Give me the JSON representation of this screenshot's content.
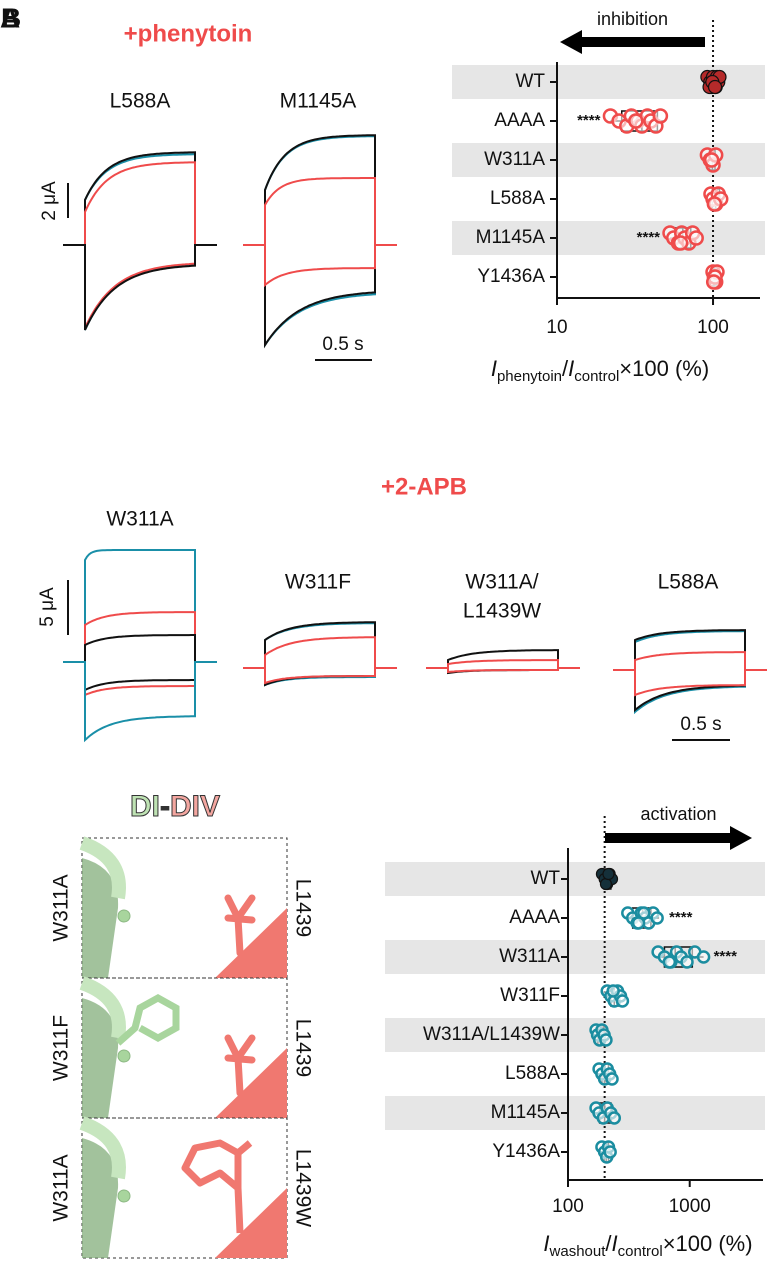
{
  "panel_labels": [
    "A",
    "B"
  ],
  "phenytoin_traces": {
    "title": "+phenytoin",
    "labels": [
      "L588A",
      "M1145A"
    ],
    "scale_current": "2 μA",
    "scale_time": "0.5 s"
  },
  "apb_traces": {
    "title": "+2-APB",
    "labels": [
      [
        "W311A"
      ],
      [
        "W311F"
      ],
      [
        "W311A/",
        "L1439W"
      ],
      [
        "L588A"
      ]
    ],
    "scale_current": "5 μA",
    "scale_time": "0.5 s"
  },
  "structures": {
    "title": [
      "DI",
      "-",
      "DIV"
    ],
    "rows": [
      {
        "left": "W311A",
        "right": "L1439"
      },
      {
        "left": "W311F",
        "right": "L1439"
      },
      {
        "left": "W311A",
        "right": "L1439W"
      }
    ]
  },
  "chart_data": [
    {
      "type": "box",
      "annotation": "inhibition",
      "log_x": true,
      "reference_line": 100,
      "categories": [
        "WT",
        "AAAA",
        "W311A",
        "L588A",
        "M1145A",
        "Y1436A"
      ],
      "point_colors": [
        "#b52a2a",
        "#ef4b4b",
        "#ef4b4b",
        "#ef4b4b",
        "#ef4b4b",
        "#ef4b4b"
      ],
      "points": [
        [
          92,
          96,
          98,
          100,
          102,
          104,
          106,
          108,
          95,
          110,
          99,
          103
        ],
        [
          22,
          25,
          28,
          30,
          33,
          35,
          38,
          40,
          43,
          46,
          32
        ],
        [
          92,
          96,
          100,
          104,
          98
        ],
        [
          97,
          100,
          104,
          108,
          112,
          102
        ],
        [
          53,
          56,
          60,
          63,
          66,
          70,
          74,
          78,
          62
        ],
        [
          100,
          102,
          104,
          106,
          103,
          101
        ]
      ],
      "boxes": [
        {
          "min": 92,
          "q1": 96,
          "median": 100,
          "q3": 106,
          "max": 110
        },
        {
          "min": 22,
          "q1": 26,
          "median": 35,
          "q3": 44,
          "max": 48
        },
        {
          "min": 92,
          "q1": 95,
          "median": 99,
          "q3": 103,
          "max": 105
        },
        {
          "min": 96,
          "q1": 99,
          "median": 104,
          "q3": 110,
          "max": 114
        },
        {
          "min": 53,
          "q1": 57,
          "median": 64,
          "q3": 72,
          "max": 78
        },
        {
          "min": 99,
          "q1": 101,
          "median": 103,
          "q3": 106,
          "max": 107
        }
      ],
      "significance": [
        null,
        "****",
        null,
        null,
        "****",
        null
      ],
      "xlim": [
        10,
        200
      ],
      "xticks": [
        10,
        100
      ],
      "xlabel": [
        "I",
        "phenytoin",
        "/",
        "I",
        "control",
        "×100 (%)"
      ]
    },
    {
      "type": "box",
      "annotation": "activation",
      "log_x": true,
      "reference_line": 200,
      "categories": [
        "WT",
        "AAAA",
        "W311A",
        "W311F",
        "W311A/L1439W",
        "L588A",
        "M1145A",
        "Y1436A"
      ],
      "point_colors": [
        "#15303a",
        "#1b8da0",
        "#1b8da0",
        "#1b8da0",
        "#1b8da0",
        "#1b8da0",
        "#1b8da0",
        "#1b8da0"
      ],
      "points": [
        [
          190,
          200,
          210,
          220,
          230,
          205,
          215
        ],
        [
          310,
          340,
          370,
          400,
          430,
          460,
          500,
          540,
          380,
          420
        ],
        [
          550,
          620,
          700,
          780,
          850,
          950,
          1100,
          1300,
          680
        ],
        [
          210,
          225,
          240,
          255,
          270,
          280,
          235
        ],
        [
          170,
          175,
          182,
          190,
          198,
          205
        ],
        [
          180,
          190,
          200,
          210,
          220,
          230
        ],
        [
          170,
          180,
          195,
          210,
          225,
          240
        ],
        [
          190,
          200,
          208,
          215,
          222
        ]
      ],
      "boxes": [
        {
          "min": 185,
          "q1": 198,
          "median": 210,
          "q3": 225,
          "max": 235
        },
        {
          "min": 300,
          "q1": 340,
          "median": 410,
          "q3": 480,
          "max": 560
        },
        {
          "min": 540,
          "q1": 620,
          "median": 760,
          "q3": 1050,
          "max": 1300
        },
        {
          "min": 210,
          "q1": 225,
          "median": 240,
          "q3": 260,
          "max": 280
        },
        {
          "min": 168,
          "q1": 176,
          "median": 185,
          "q3": 195,
          "max": 205
        },
        {
          "min": 178,
          "q1": 190,
          "median": 200,
          "q3": 215,
          "max": 230
        },
        {
          "min": 168,
          "q1": 182,
          "median": 200,
          "q3": 225,
          "max": 240
        },
        {
          "min": 188,
          "q1": 198,
          "median": 206,
          "q3": 215,
          "max": 222
        }
      ],
      "significance": [
        null,
        "****",
        "****",
        null,
        null,
        null,
        null,
        null
      ],
      "xlim": [
        100,
        4000
      ],
      "xticks": [
        100,
        1000
      ],
      "xlabel": [
        "I",
        "washout",
        "/",
        "I",
        "control",
        "×100 (%)"
      ]
    }
  ]
}
